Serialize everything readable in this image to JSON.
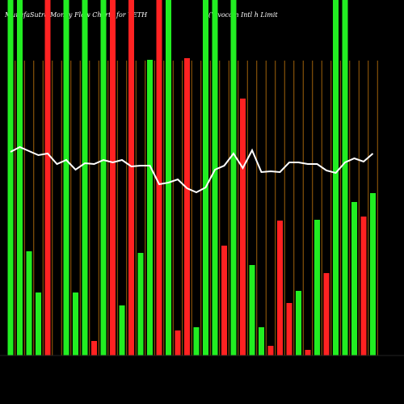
{
  "chart_data": {
    "type": "bar",
    "title": "MunafaSutra Money Flow Charts for VETH",
    "subtitle": "(Vivocom Intl h Limit",
    "ylim": [
      0,
      440
    ],
    "series": [
      {
        "name": "Money flow",
        "values": [
          440,
          440,
          129,
          78,
          440,
          0,
          440,
          78,
          440,
          18,
          440,
          440,
          62,
          440,
          127,
          366,
          440,
          440,
          31,
          368,
          35,
          440,
          440,
          136,
          440,
          318,
          112,
          35,
          12,
          167,
          65,
          80,
          7,
          168,
          102,
          440,
          440,
          190,
          172,
          201
        ],
        "colors": [
          "#22ee22",
          "#22ee22",
          "#22ee22",
          "#22ee22",
          "#ff2222",
          "#ff2222",
          "#22ee22",
          "#22ee22",
          "#22ee22",
          "#ff2222",
          "#22ee22",
          "#ff2222",
          "#22ee22",
          "#ff2222",
          "#22ee22",
          "#22ee22",
          "#ff2222",
          "#22ee22",
          "#ff2222",
          "#ff2222",
          "#22ee22",
          "#22ee22",
          "#22ee22",
          "#ff2222",
          "#22ee22",
          "#ff2222",
          "#22ee22",
          "#22ee22",
          "#ff2222",
          "#ff2222",
          "#ff2222",
          "#22ee22",
          "#ff2222",
          "#22ee22",
          "#ff2222",
          "#22ee22",
          "#22ee22",
          "#22ee22",
          "#ff2222",
          "#22ee22"
        ]
      },
      {
        "name": "Price",
        "type": "line",
        "color": "#ffffff",
        "values": [
          252,
          258,
          253,
          248,
          250,
          237,
          242,
          230,
          238,
          237,
          242,
          239,
          242,
          234,
          235,
          235,
          212,
          214,
          218,
          207,
          202,
          208,
          230,
          235,
          250,
          232,
          254,
          227,
          228,
          227,
          239,
          239,
          237,
          237,
          229,
          226,
          239,
          244,
          240,
          250
        ]
      }
    ],
    "guide_color": "#a0620a"
  }
}
